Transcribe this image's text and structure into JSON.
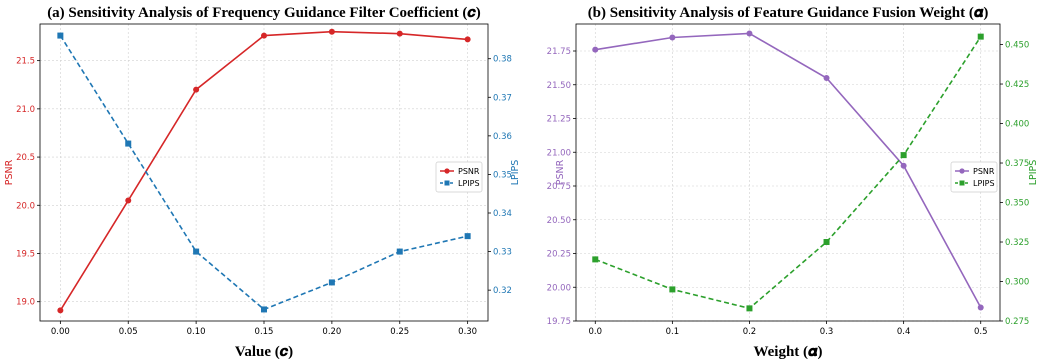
{
  "chart_data": [
    {
      "type": "line",
      "title": "(a) Sensitivity Analysis of Frequency Guidance Filter Coefficient (𝒄)",
      "xlabel": "Value (𝒄)",
      "x": [
        0.0,
        0.05,
        0.1,
        0.15,
        0.2,
        0.25,
        0.3
      ],
      "x_tick_labels": [
        "0.00",
        "0.05",
        "0.10",
        "0.15",
        "0.20",
        "0.25",
        "0.30"
      ],
      "xlim": [
        -0.015,
        0.315
      ],
      "y_left": {
        "label": "PSNR",
        "color": "#d62728",
        "lim": [
          18.8,
          21.88
        ],
        "ticks": [
          19.0,
          19.5,
          20.0,
          20.5,
          21.0,
          21.5
        ],
        "tick_labels": [
          "19.0",
          "19.5",
          "20.0",
          "20.5",
          "21.0",
          "21.5"
        ]
      },
      "y_right": {
        "label": "LPIPS",
        "color": "#1f77b4",
        "lim": [
          0.312,
          0.389
        ],
        "ticks": [
          0.32,
          0.33,
          0.34,
          0.35,
          0.36,
          0.37,
          0.38
        ],
        "tick_labels": [
          "0.32",
          "0.33",
          "0.34",
          "0.35",
          "0.36",
          "0.37",
          "0.38"
        ]
      },
      "series": [
        {
          "name": "PSNR",
          "axis": "left",
          "color": "#d62728",
          "style": "solid",
          "marker": "circle",
          "values": [
            18.91,
            20.05,
            21.2,
            21.76,
            21.8,
            21.78,
            21.72
          ]
        },
        {
          "name": "LPIPS",
          "axis": "right",
          "color": "#1f77b4",
          "style": "dashed",
          "marker": "square",
          "values": [
            0.386,
            0.358,
            0.33,
            0.315,
            0.322,
            0.33,
            0.334
          ]
        }
      ],
      "grid": true,
      "legend": "center-right"
    },
    {
      "type": "line",
      "title": "(b) Sensitivity Analysis of Feature Guidance Fusion Weight (𝜶)",
      "xlabel": "Weight (𝜶)",
      "x": [
        0.0,
        0.1,
        0.2,
        0.3,
        0.4,
        0.5
      ],
      "x_tick_labels": [
        "0.0",
        "0.1",
        "0.2",
        "0.3",
        "0.4",
        "0.5"
      ],
      "xlim": [
        -0.025,
        0.525
      ],
      "y_left": {
        "label": "PSNR",
        "color": "#9467bd",
        "lim": [
          19.75,
          21.95
        ],
        "ticks": [
          19.75,
          20.0,
          20.25,
          20.5,
          20.75,
          21.0,
          21.25,
          21.5,
          21.75
        ],
        "tick_labels": [
          "19.75",
          "20.00",
          "20.25",
          "20.50",
          "20.75",
          "21.00",
          "21.25",
          "21.50",
          "21.75"
        ]
      },
      "y_right": {
        "label": "LPIPS",
        "color": "#2ca02c",
        "lim": [
          0.275,
          0.463
        ],
        "ticks": [
          0.275,
          0.3,
          0.325,
          0.35,
          0.375,
          0.4,
          0.425,
          0.45
        ],
        "tick_labels": [
          "0.275",
          "0.300",
          "0.325",
          "0.350",
          "0.375",
          "0.400",
          "0.425",
          "0.450"
        ]
      },
      "series": [
        {
          "name": "PSNR",
          "axis": "left",
          "color": "#9467bd",
          "style": "solid",
          "marker": "circle",
          "values": [
            21.76,
            21.85,
            21.88,
            21.55,
            20.9,
            19.85
          ]
        },
        {
          "name": "LPIPS",
          "axis": "right",
          "color": "#2ca02c",
          "style": "dashed",
          "marker": "square",
          "values": [
            0.314,
            0.295,
            0.283,
            0.325,
            0.38,
            0.455
          ]
        }
      ],
      "grid": true,
      "legend": "center-right"
    }
  ]
}
